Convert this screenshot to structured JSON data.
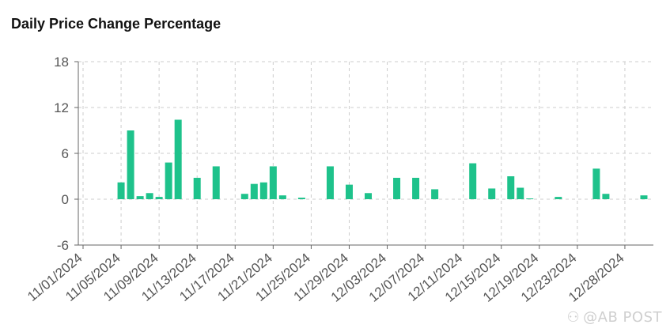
{
  "chart_data": {
    "type": "bar",
    "title": "Daily Price Change Percentage",
    "xlabel": "",
    "ylabel": "",
    "ylim": [
      -6,
      18
    ],
    "yticks": [
      -6,
      0,
      6,
      12,
      18
    ],
    "grid": true,
    "bar_color": "#1ec28b",
    "x_tick_labels": [
      "11/01/2024",
      "11/05/2024",
      "11/09/2024",
      "11/13/2024",
      "11/17/2024",
      "11/21/2024",
      "11/25/2024",
      "11/29/2024",
      "12/03/2024",
      "12/07/2024",
      "12/11/2024",
      "12/15/2024",
      "12/19/2024",
      "12/23/2024",
      "12/28/2024"
    ],
    "x": [
      "2024-11-05",
      "2024-11-06",
      "2024-11-07",
      "2024-11-08",
      "2024-11-09",
      "2024-11-10",
      "2024-11-11",
      "2024-11-13",
      "2024-11-15",
      "2024-11-18",
      "2024-11-19",
      "2024-11-20",
      "2024-11-21",
      "2024-11-22",
      "2024-11-24",
      "2024-11-27",
      "2024-11-29",
      "2024-12-01",
      "2024-12-04",
      "2024-12-06",
      "2024-12-08",
      "2024-12-12",
      "2024-12-14",
      "2024-12-16",
      "2024-12-17",
      "2024-12-18",
      "2024-12-21",
      "2024-12-25",
      "2024-12-26",
      "2024-12-30"
    ],
    "values": [
      2.2,
      9.0,
      0.4,
      0.8,
      0.3,
      4.8,
      10.4,
      2.8,
      4.3,
      0.7,
      2.0,
      2.2,
      4.3,
      0.5,
      0.2,
      4.3,
      1.9,
      0.8,
      2.8,
      2.8,
      1.3,
      4.7,
      1.4,
      3.0,
      1.5,
      0.1,
      0.3,
      4.0,
      0.7,
      0.5
    ]
  },
  "watermark": {
    "text": "@AB POST"
  }
}
